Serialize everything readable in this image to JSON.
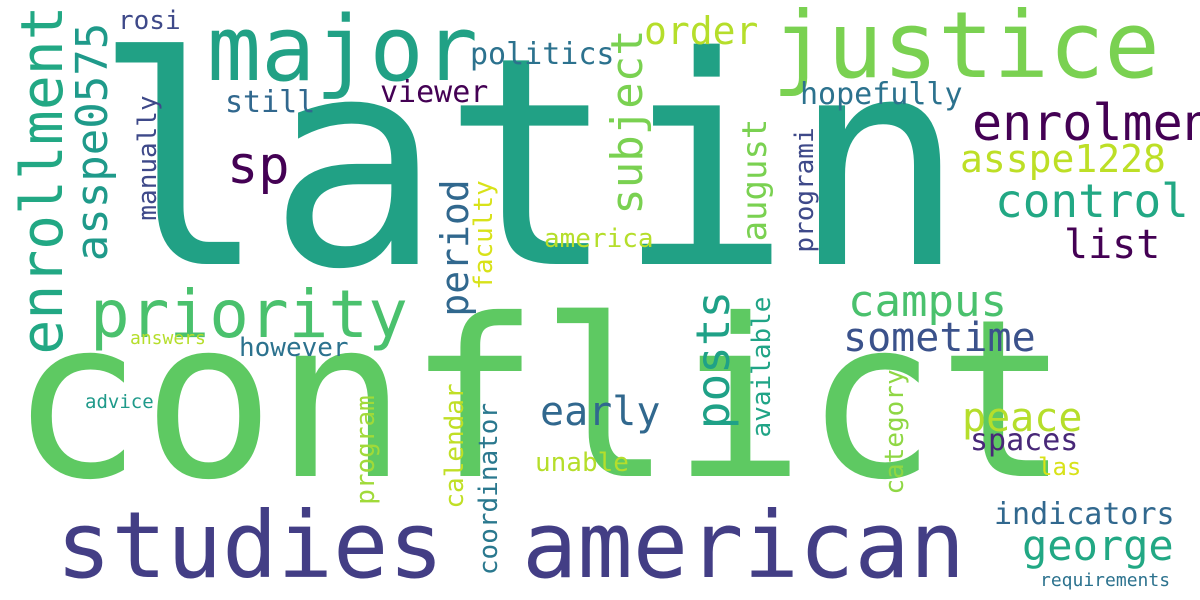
{
  "words": [
    {
      "text": "latin",
      "color": "#21a185"
    },
    {
      "text": "conflict",
      "color": "#5ec962"
    },
    {
      "text": "justice",
      "color": "#7ad151"
    },
    {
      "text": "major",
      "color": "#21a185"
    },
    {
      "text": "american",
      "color": "#433e85"
    },
    {
      "text": "studies",
      "color": "#433e85"
    },
    {
      "text": "priority",
      "color": "#4ac16d"
    },
    {
      "text": "enrolment",
      "color": "#440154"
    },
    {
      "text": "control",
      "color": "#22a884"
    },
    {
      "text": "campus",
      "color": "#4ac16d"
    },
    {
      "text": "enrollment",
      "color": "#22a884"
    },
    {
      "text": "asspe0575",
      "color": "#1f9a8a"
    },
    {
      "text": "asspe1228",
      "color": "#bddf26"
    },
    {
      "text": "subject",
      "color": "#7ad151"
    },
    {
      "text": "george",
      "color": "#22a884"
    },
    {
      "text": "posts",
      "color": "#1fa187"
    },
    {
      "text": "sometime",
      "color": "#3b528b"
    },
    {
      "text": "early",
      "color": "#31688e"
    },
    {
      "text": "period",
      "color": "#31688e"
    },
    {
      "text": "list",
      "color": "#440154"
    },
    {
      "text": "peace",
      "color": "#b5de2b"
    },
    {
      "text": "august",
      "color": "#7ad151"
    },
    {
      "text": "sp",
      "color": "#440154"
    },
    {
      "text": "order",
      "color": "#b5de2b"
    },
    {
      "text": "hopefully",
      "color": "#2c728e"
    },
    {
      "text": "indicators",
      "color": "#31688e"
    },
    {
      "text": "spaces",
      "color": "#482878"
    },
    {
      "text": "viewer",
      "color": "#440154"
    },
    {
      "text": "politics",
      "color": "#2c728e"
    },
    {
      "text": "still",
      "color": "#31688e"
    },
    {
      "text": "however",
      "color": "#2c728e"
    },
    {
      "text": "america",
      "color": "#b5de2b"
    },
    {
      "text": "unable",
      "color": "#b5de2b"
    },
    {
      "text": "rosi",
      "color": "#3e4989"
    },
    {
      "text": "manually",
      "color": "#3e4989"
    },
    {
      "text": "programi",
      "color": "#3e4989"
    },
    {
      "text": "faculty",
      "color": "#d8e219"
    },
    {
      "text": "available",
      "color": "#20a486"
    },
    {
      "text": "coordinator",
      "color": "#2a788e"
    },
    {
      "text": "calendar",
      "color": "#c0df25"
    },
    {
      "text": "program",
      "color": "#a0da39"
    },
    {
      "text": "category",
      "color": "#8fd744"
    },
    {
      "text": "las",
      "color": "#d8e219"
    },
    {
      "text": "advice",
      "color": "#1f9a8a"
    },
    {
      "text": "answers",
      "color": "#b5de2b"
    },
    {
      "text": "requirements",
      "color": "#2c728e"
    }
  ]
}
